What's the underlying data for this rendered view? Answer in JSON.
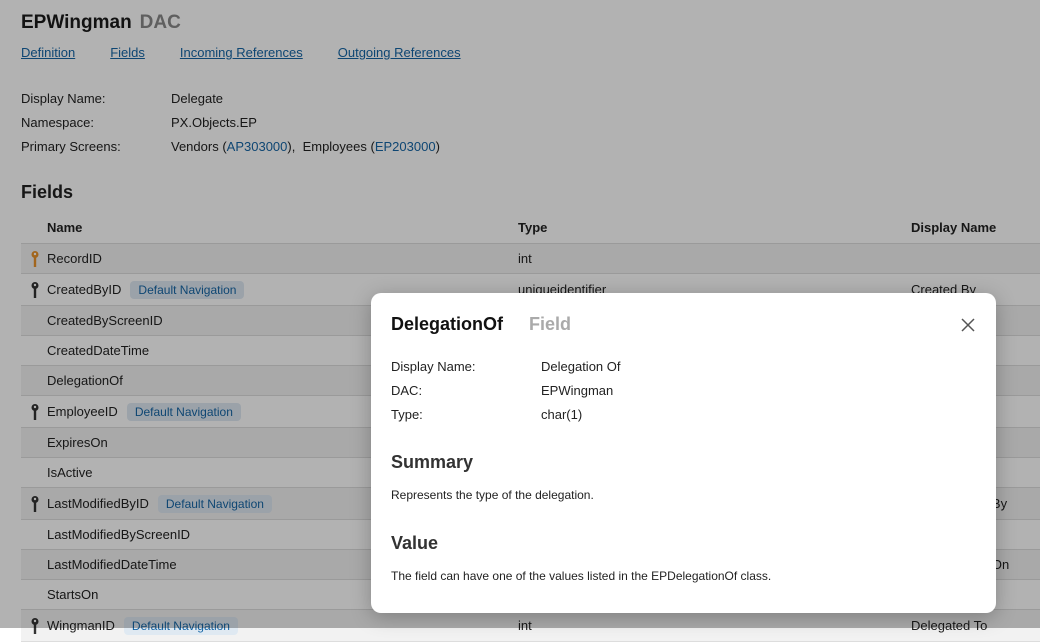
{
  "header": {
    "title": "EPWingman",
    "subtitle": "DAC"
  },
  "tabs": [
    {
      "label": "Definition"
    },
    {
      "label": "Fields"
    },
    {
      "label": "Incoming References"
    },
    {
      "label": "Outgoing References"
    }
  ],
  "properties": {
    "display_name_label": "Display Name:",
    "display_name": "Delegate",
    "namespace_label": "Namespace:",
    "namespace": "PX.Objects.EP",
    "primary_screens_label": "Primary Screens:",
    "screens": [
      {
        "name": "Vendors",
        "id": "AP303000"
      },
      {
        "name": "Employees",
        "id": "EP203000"
      }
    ]
  },
  "fields_section": {
    "heading": "Fields",
    "columns": [
      "Name",
      "Type",
      "Display Name"
    ],
    "rows": [
      {
        "name": "RecordID",
        "key": "primary",
        "badge": "",
        "type": "int",
        "display": ""
      },
      {
        "name": "CreatedByID",
        "key": "foreign",
        "badge": "Default Navigation",
        "type": "uniqueidentifier",
        "display": "Created By"
      },
      {
        "name": "CreatedByScreenID",
        "key": "",
        "badge": "",
        "type": "",
        "display": ""
      },
      {
        "name": "CreatedDateTime",
        "key": "",
        "badge": "",
        "type": "",
        "display": ""
      },
      {
        "name": "DelegationOf",
        "key": "",
        "badge": "",
        "type": "",
        "display": ""
      },
      {
        "name": "EmployeeID",
        "key": "foreign",
        "badge": "Default Navigation",
        "type": "",
        "display": ""
      },
      {
        "name": "ExpiresOn",
        "key": "",
        "badge": "",
        "type": "",
        "display": ""
      },
      {
        "name": "IsActive",
        "key": "",
        "badge": "",
        "type": "",
        "display": ""
      },
      {
        "name": "LastModifiedByID",
        "key": "foreign",
        "badge": "Default Navigation",
        "type": "",
        "display": "Last Modified By"
      },
      {
        "name": "LastModifiedByScreenID",
        "key": "",
        "badge": "",
        "type": "",
        "display": ""
      },
      {
        "name": "LastModifiedDateTime",
        "key": "",
        "badge": "",
        "type": "",
        "display": "Last Modified On"
      },
      {
        "name": "StartsOn",
        "key": "",
        "badge": "",
        "type": "",
        "display": ""
      },
      {
        "name": "WingmanID",
        "key": "foreign",
        "badge": "Default Navigation",
        "type": "int",
        "display": "Delegated To"
      }
    ]
  },
  "modal": {
    "title": "DelegationOf",
    "subtitle": "Field",
    "display_name_label": "Display Name:",
    "display_name": "Delegation Of",
    "dac_label": "DAC:",
    "dac": "EPWingman",
    "type_label": "Type:",
    "type": "char(1)",
    "summary_heading": "Summary",
    "summary": "Represents the type of the delegation.",
    "value_heading": "Value",
    "value": "The field can have one of the values listed in the EPDelegationOf class."
  },
  "colors": {
    "link": "#1565a5",
    "primary_key": "#e8922c",
    "foreign_key": "#333333"
  }
}
